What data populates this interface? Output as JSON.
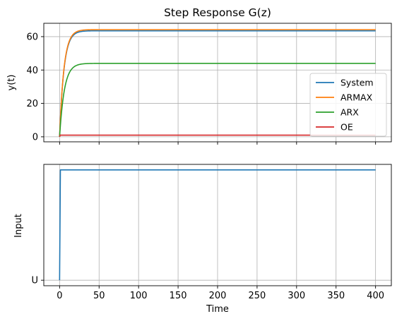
{
  "chart_data": [
    {
      "type": "line",
      "title": "Step Response G(z)",
      "xlabel": "",
      "ylabel": "y(t)",
      "xlim": [
        -20,
        420
      ],
      "ylim": [
        -3,
        68
      ],
      "xticks": [
        0,
        50,
        100,
        150,
        200,
        250,
        300,
        350,
        400
      ],
      "yticks": [
        0,
        20,
        40,
        60
      ],
      "ytick_labels": [
        "0",
        "20",
        "40",
        "60"
      ],
      "grid": true,
      "legend_position": "lower-right",
      "series": [
        {
          "name": "System",
          "color": "#1f77b4",
          "steady_state": 63.5,
          "time_constant": 5.5,
          "x_end": 400
        },
        {
          "name": "ARMAX",
          "color": "#ff7f0e",
          "steady_state": 64.2,
          "time_constant": 5.5,
          "x_end": 400
        },
        {
          "name": "ARX",
          "color": "#2ca02c",
          "steady_state": 44.0,
          "time_constant": 6.0,
          "x_end": 400
        },
        {
          "name": "OE",
          "color": "#d62728",
          "steady_state": 1.0,
          "time_constant": 0.3,
          "x_end": 400
        }
      ]
    },
    {
      "type": "line",
      "title": "",
      "xlabel": "Time",
      "ylabel": "Input",
      "xlim": [
        -20,
        420
      ],
      "ylim": [
        -0.05,
        1.05
      ],
      "xticks": [
        0,
        50,
        100,
        150,
        200,
        250,
        300,
        350,
        400
      ],
      "xtick_labels": [
        "0",
        "50",
        "100",
        "150",
        "200",
        "250",
        "300",
        "350",
        "400"
      ],
      "yticks": [
        0
      ],
      "ytick_labels": [
        "U"
      ],
      "grid": true,
      "series": [
        {
          "name": "Input",
          "color": "#1f77b4",
          "x": [
            0,
            1,
            400
          ],
          "y": [
            0,
            1,
            1
          ]
        }
      ]
    }
  ]
}
